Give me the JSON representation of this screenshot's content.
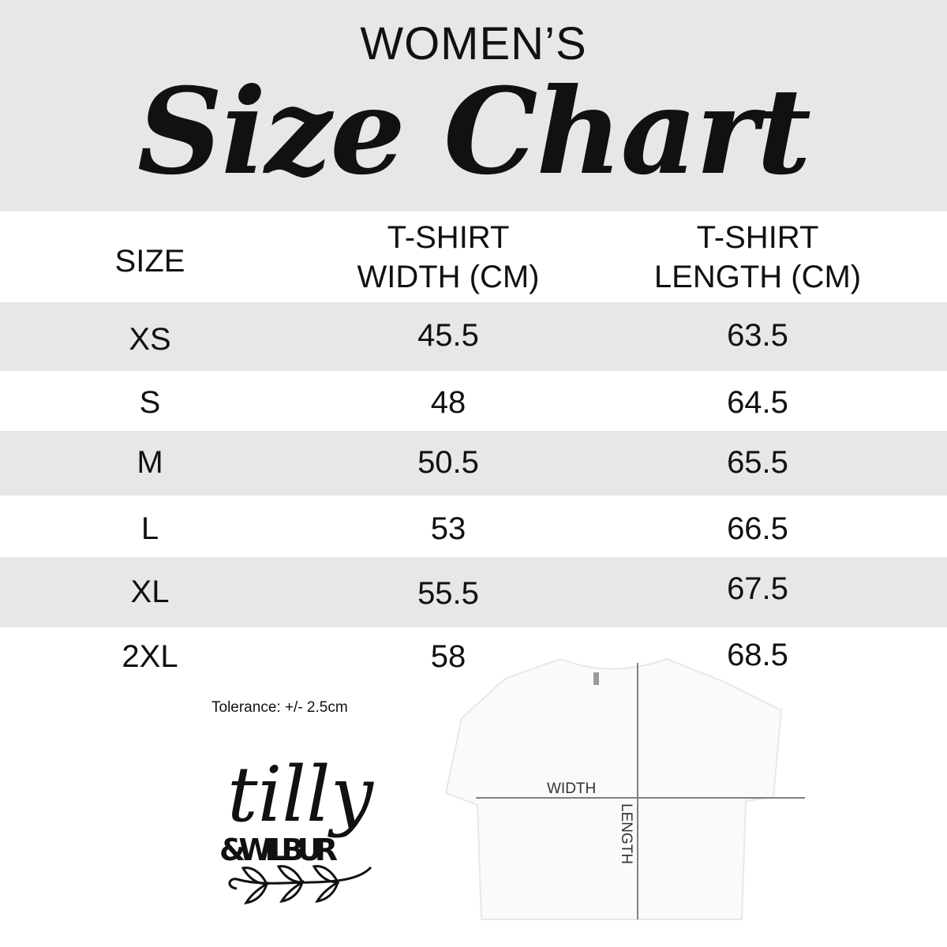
{
  "header": {
    "subtitle": "WOMEN’S",
    "title": "Size Chart"
  },
  "table": {
    "columns": [
      "SIZE",
      "T-SHIRT WIDTH (CM)",
      "T-SHIRT LENGTH (CM)"
    ],
    "column_lines": [
      [
        "SIZE"
      ],
      [
        "T-SHIRT",
        "WIDTH (CM)"
      ],
      [
        "T-SHIRT",
        "LENGTH (CM)"
      ]
    ],
    "rows": [
      {
        "size": "XS",
        "width": "45.5",
        "length": "63.5"
      },
      {
        "size": "S",
        "width": "48",
        "length": "64.5"
      },
      {
        "size": "M",
        "width": "50.5",
        "length": "65.5"
      },
      {
        "size": "L",
        "width": "53",
        "length": "66.5"
      },
      {
        "size": "XL",
        "width": "55.5",
        "length": "67.5"
      },
      {
        "size": "2XL",
        "width": "58",
        "length": "68.5"
      }
    ]
  },
  "tolerance": "Tolerance: +/- 2.5cm",
  "logo": {
    "line1": "tilly",
    "line2": "&WILBUR"
  },
  "diagram": {
    "width_label": "WIDTH",
    "length_label": "LENGTH"
  },
  "colors": {
    "band_gray": "#e6e7e8",
    "text": "#111111",
    "measure_line": "#808080"
  }
}
